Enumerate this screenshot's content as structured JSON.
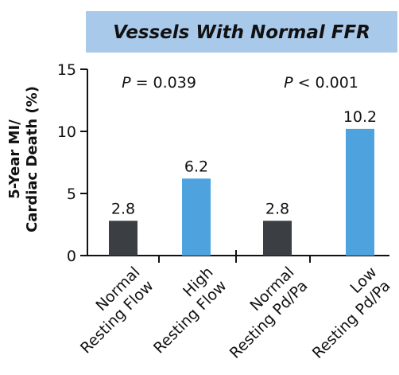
{
  "chart_data": {
    "type": "bar",
    "title": "Vessels With Normal FFR",
    "ylabel": [
      "5-Year MI/",
      "Cardiac Death (%)"
    ],
    "categories": [
      [
        "Normal",
        "Resting Flow"
      ],
      [
        "High",
        "Resting Flow"
      ],
      [
        "Normal",
        "Resting Pd/Pa"
      ],
      [
        "Low",
        "Resting Pd/Pa"
      ]
    ],
    "values": [
      2.8,
      6.2,
      2.8,
      10.2
    ],
    "colors": [
      "#3b3e42",
      "#4ea3df",
      "#3b3e42",
      "#4ea3df"
    ],
    "annotations": [
      {
        "symbol": "P",
        "text": "= 0.039"
      },
      {
        "symbol": "P",
        "text": "< 0.001"
      }
    ],
    "ylim": [
      0,
      15
    ],
    "yticks": [
      0,
      5,
      10,
      15
    ],
    "grid": false
  }
}
